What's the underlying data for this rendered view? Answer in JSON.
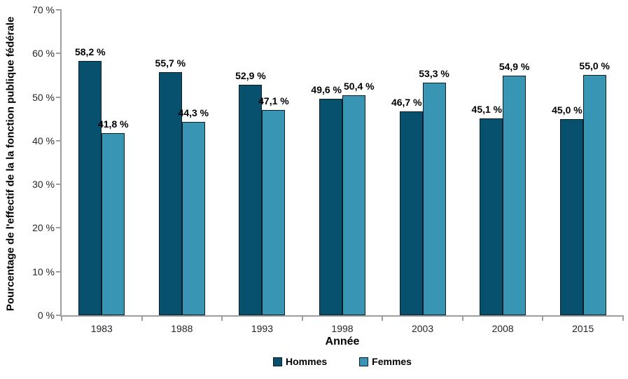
{
  "chart_data": {
    "type": "bar",
    "title": "",
    "categories": [
      "1983",
      "1988",
      "1993",
      "1998",
      "2003",
      "2008",
      "2015"
    ],
    "series": [
      {
        "name": "Hommes",
        "color": "#07506E",
        "values": [
          58.2,
          55.7,
          52.9,
          49.6,
          46.7,
          45.1,
          45.0
        ],
        "labels": [
          "58,2 %",
          "55,7 %",
          "52,9 %",
          "49,6 %",
          "46,7 %",
          "45,1 %",
          "45,0 %"
        ]
      },
      {
        "name": "Femmes",
        "color": "#3896B4",
        "values": [
          41.8,
          44.3,
          47.1,
          50.4,
          53.3,
          54.9,
          55.0
        ],
        "labels": [
          "41,8 %",
          "44,3 %",
          "47,1 %",
          "50,4 %",
          "53,3 %",
          "54,9 %",
          "55,0 %"
        ]
      }
    ],
    "xlabel": "Année",
    "ylabel": "Pourcentage de l'effectif de la la fonction publique fédérale",
    "ylim": [
      0,
      70
    ],
    "ytick_step": 10,
    "ytick_labels": [
      "0 %",
      "10 %",
      "20 %",
      "30 %",
      "40 %",
      "50 %",
      "60 %",
      "70 %"
    ],
    "grid": false,
    "legend_position": "bottom",
    "colors": {
      "bar_border": "#0B1D28",
      "axis": "#9E9E9E",
      "label_text": "#000000",
      "tick_text": "#262626"
    }
  }
}
